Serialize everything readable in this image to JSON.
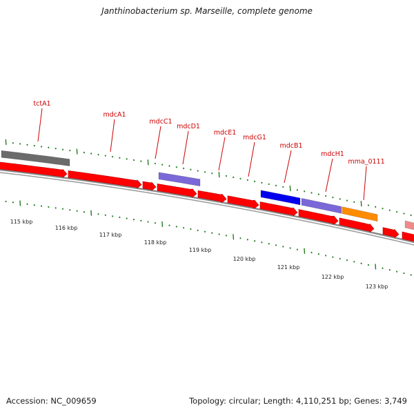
{
  "title": "Janthinobacterium sp. Marseille, complete genome",
  "footer": {
    "accession": "Accession: NC_009659",
    "summary": "Topology: circular; Length: 4,110,251 bp; Genes: 3,749"
  },
  "colors": {
    "backbone": "#8a8a8a",
    "forward_gene": "#ff0000",
    "reverse_gray": "#6b6b6b",
    "reverse_blue": "#0000ee",
    "reverse_lavender": "#7b68d8",
    "reverse_orange": "#ff8c00",
    "reverse_pink": "#f08a8a",
    "tick_green": "#1f7a1f",
    "gene_label": "#cc0000",
    "kbp_label": "#222222"
  },
  "kbp_labels": [
    {
      "text": "115 kbp",
      "kbp": 115
    },
    {
      "text": "116 kbp",
      "kbp": 116
    },
    {
      "text": "117 kbp",
      "kbp": 117
    },
    {
      "text": "118 kbp",
      "kbp": 118
    },
    {
      "text": "119 kbp",
      "kbp": 119
    },
    {
      "text": "120 kbp",
      "kbp": 120
    },
    {
      "text": "121 kbp",
      "kbp": 121
    },
    {
      "text": "122 kbp",
      "kbp": 122
    },
    {
      "text": "123 kbp",
      "kbp": 123
    }
  ],
  "gene_labels": [
    {
      "text": "tctA1"
    },
    {
      "text": "mdcA1"
    },
    {
      "text": "mdcC1"
    },
    {
      "text": "mdcD1"
    },
    {
      "text": "mdcE1"
    },
    {
      "text": "mdcG1"
    },
    {
      "text": "mdcB1"
    },
    {
      "text": "mdcH1"
    },
    {
      "text": "mma_0111"
    }
  ],
  "forward_genes": [
    {
      "name": "forward-gene-1",
      "color": "forward_gene"
    },
    {
      "name": "forward-gene-2",
      "color": "forward_gene"
    },
    {
      "name": "forward-gene-3",
      "color": "forward_gene"
    },
    {
      "name": "forward-gene-4",
      "color": "forward_gene"
    },
    {
      "name": "forward-gene-5",
      "color": "forward_gene"
    },
    {
      "name": "forward-gene-6",
      "color": "forward_gene"
    },
    {
      "name": "forward-gene-7",
      "color": "forward_gene"
    },
    {
      "name": "forward-gene-8",
      "color": "forward_gene"
    },
    {
      "name": "forward-gene-9",
      "color": "forward_gene"
    },
    {
      "name": "forward-gene-10",
      "color": "forward_gene"
    },
    {
      "name": "forward-gene-11",
      "color": "forward_gene"
    },
    {
      "name": "forward-gene-12",
      "color": "forward_gene"
    }
  ],
  "reverse_features": [
    {
      "name": "reverse-feature-gray",
      "color": "reverse_gray"
    },
    {
      "name": "reverse-feature-lavender-1",
      "color": "reverse_lavender"
    },
    {
      "name": "reverse-feature-blue",
      "color": "reverse_blue"
    },
    {
      "name": "reverse-feature-lavender-2",
      "color": "reverse_lavender"
    },
    {
      "name": "reverse-feature-orange",
      "color": "reverse_orange"
    },
    {
      "name": "reverse-feature-pink",
      "color": "reverse_pink"
    }
  ]
}
